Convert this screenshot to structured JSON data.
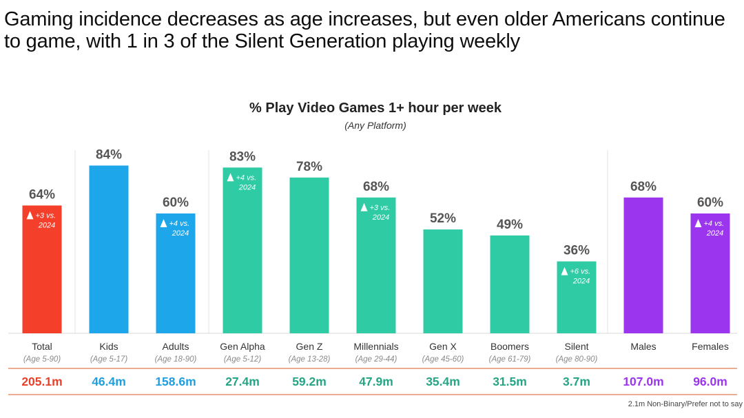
{
  "headline": "Gaming incidence decreases as age increases, but even older Americans continue to game, with 1 in 3 of the Silent Generation playing weekly",
  "footnote": "2.1m Non-Binary/Prefer not to say",
  "colors": {
    "total": "#f43f2b",
    "adults_kids": "#1ea6ea",
    "generations": "#2fcba4",
    "gender": "#9b35ee",
    "total_text": "#e8412b",
    "adults_kids_text": "#1e9fe0",
    "generations_text": "#25a585",
    "gender_text": "#9b35ee",
    "divider": "#e07a50"
  },
  "chart_data": {
    "type": "bar",
    "title": "% Play Video Games 1+ hour per week",
    "subtitle": "(Any Platform)",
    "ylim": [
      0,
      100
    ],
    "grid": false,
    "bars": [
      {
        "label": "Total",
        "sublabel": "(Age 5-90)",
        "value": 64,
        "value_label": "64%",
        "change": "+3 vs. 2024",
        "population": "205.1m",
        "group": "total"
      },
      {
        "label": "Kids",
        "sublabel": "(Age 5-17)",
        "value": 84,
        "value_label": "84%",
        "change": "",
        "population": "46.4m",
        "group": "adults_kids"
      },
      {
        "label": "Adults",
        "sublabel": "(Age 18-90)",
        "value": 60,
        "value_label": "60%",
        "change": "+4 vs. 2024",
        "population": "158.6m",
        "group": "adults_kids"
      },
      {
        "label": "Gen Alpha",
        "sublabel": "(Age 5-12)",
        "value": 83,
        "value_label": "83%",
        "change": "+4 vs. 2024",
        "population": "27.4m",
        "group": "generations"
      },
      {
        "label": "Gen Z",
        "sublabel": "(Age 13-28)",
        "value": 78,
        "value_label": "78%",
        "change": "",
        "population": "59.2m",
        "group": "generations"
      },
      {
        "label": "Millennials",
        "sublabel": "(Age 29-44)",
        "value": 68,
        "value_label": "68%",
        "change": "+3 vs. 2024",
        "population": "47.9m",
        "group": "generations"
      },
      {
        "label": "Gen X",
        "sublabel": "(Age 45-60)",
        "value": 52,
        "value_label": "52%",
        "change": "",
        "population": "35.4m",
        "group": "generations"
      },
      {
        "label": "Boomers",
        "sublabel": "(Age 61-79)",
        "value": 49,
        "value_label": "49%",
        "change": "",
        "population": "31.5m",
        "group": "generations"
      },
      {
        "label": "Silent",
        "sublabel": "(Age 80-90)",
        "value": 36,
        "value_label": "36%",
        "change": "+6 vs. 2024",
        "population": "3.7m",
        "group": "generations"
      },
      {
        "label": "Males",
        "sublabel": "",
        "value": 68,
        "value_label": "68%",
        "change": "",
        "population": "107.0m",
        "group": "gender"
      },
      {
        "label": "Females",
        "sublabel": "",
        "value": 60,
        "value_label": "60%",
        "change": "+4 vs. 2024",
        "population": "96.0m",
        "group": "gender"
      }
    ]
  }
}
